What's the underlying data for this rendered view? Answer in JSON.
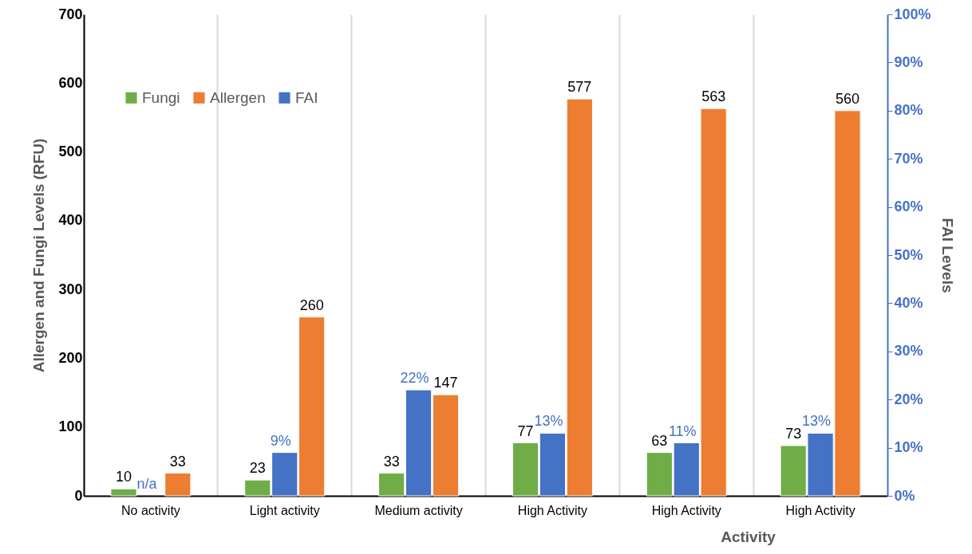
{
  "chart_data": {
    "type": "bar",
    "categories": [
      "No activity",
      "Light activity",
      "Medium activity",
      "High Activity",
      "High Activity",
      "High Activity"
    ],
    "series": [
      {
        "name": "Fungi",
        "color": "#70ad47",
        "values": [
          10,
          23,
          33,
          77,
          63,
          73
        ],
        "value_labels": [
          "10",
          "23",
          "33",
          "77",
          "63",
          "73"
        ]
      },
      {
        "name": "Allergen",
        "color": "#ed7d31",
        "values": [
          33,
          260,
          147,
          577,
          563,
          560
        ],
        "value_labels": [
          "33",
          "260",
          "147",
          "577",
          "563",
          "560"
        ]
      },
      {
        "name": "FAI",
        "color": "#4472c4",
        "axis": "y2",
        "values": [
          null,
          9,
          22,
          13,
          11,
          13
        ],
        "value_labels": [
          "n/a",
          "9%",
          "22%",
          "13%",
          "11%",
          "13%"
        ]
      }
    ],
    "xlabel": "Activity",
    "ylabel": "Allergen and Fungi Levels (RFU)",
    "y2label": "FAI  Levels",
    "ylim": [
      0,
      700
    ],
    "yticks": [
      0,
      100,
      200,
      300,
      400,
      500,
      600,
      700
    ],
    "y2lim": [
      0,
      100
    ],
    "y2ticks": [
      {
        "value": 0,
        "label": "0%"
      },
      {
        "value": 10,
        "label": "10%"
      },
      {
        "value": 20,
        "label": "20%"
      },
      {
        "value": 30,
        "label": "30%"
      },
      {
        "value": 40,
        "label": "40%"
      },
      {
        "value": 50,
        "label": "50%"
      },
      {
        "value": 60,
        "label": "60%"
      },
      {
        "value": 70,
        "label": "70%"
      },
      {
        "value": 80,
        "label": "80%"
      },
      {
        "value": 90,
        "label": "90%"
      },
      {
        "value": 100,
        "label": "100%"
      }
    ],
    "grid": "x",
    "legend": "top left"
  }
}
